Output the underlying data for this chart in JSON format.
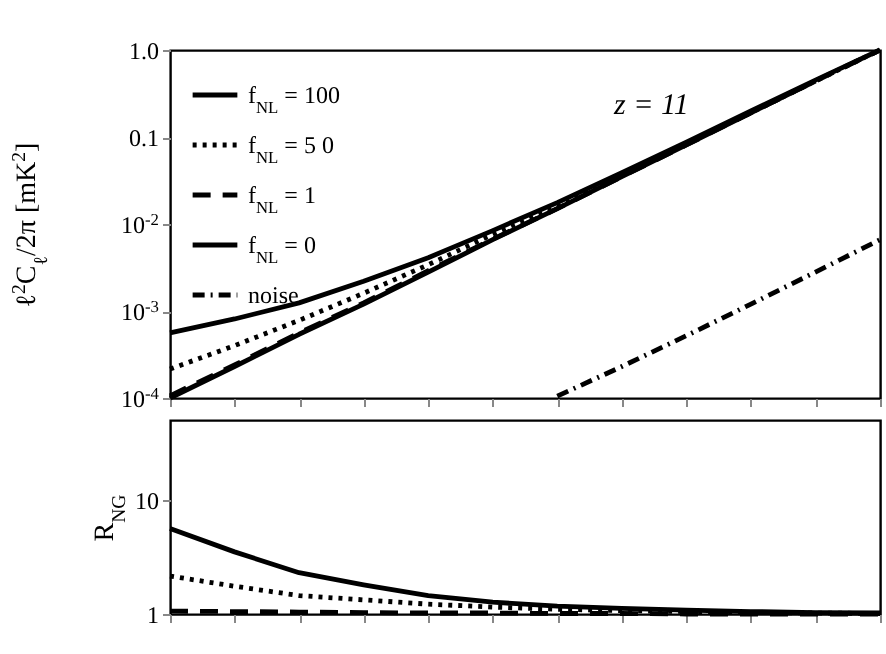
{
  "chart_data": [
    {
      "type": "line",
      "ylabel": "ℓ$^{2}$C$_{ℓ}$/2π [mK$^{2}$]",
      "categories": [
        null,
        null,
        null,
        null,
        null,
        null,
        null,
        null,
        null,
        null,
        null,
        null
      ],
      "series": [
        {
          "name": "f$_{NL}$ = 100",
          "color": "#000000",
          "line_style": "solid",
          "values": [
            0.00056,
            0.00081,
            0.00124,
            0.0022,
            0.0041,
            0.0084,
            0.0176,
            0.039,
            0.087,
            0.2,
            0.45,
            1.0
          ]
        },
        {
          "name": "f$_{NL}$ = 5 0",
          "color": "#000000",
          "line_style": "dotted",
          "values": [
            0.000215,
            0.0004,
            0.00078,
            0.0016,
            0.0034,
            0.0076,
            0.0165,
            0.037,
            0.085,
            0.19,
            0.44,
            1.0
          ]
        },
        {
          "name": "f$_{NL}$ = 1",
          "color": "#000000",
          "line_style": "dashed",
          "values": [
            0.000106,
            0.00024,
            0.00056,
            0.00124,
            0.0029,
            0.0067,
            0.015,
            0.035,
            0.081,
            0.19,
            0.44,
            1.0
          ]
        },
        {
          "name": "f$_{NL}$ = 0",
          "color": "#000000",
          "line_style": "solid",
          "values": [
            0.0001,
            0.00023,
            0.00054,
            0.0012,
            0.0028,
            0.0066,
            0.015,
            0.035,
            0.081,
            0.19,
            0.44,
            null
          ]
        },
        {
          "name": "noise",
          "color": "#000000",
          "line_style": "dashdot",
          "values": [
            null,
            null,
            null,
            null,
            null,
            null,
            0.000105,
            0.00023,
            0.00052,
            0.0012,
            0.0028,
            0.0066
          ]
        }
      ],
      "log": "y",
      "ylim": [
        0.0001,
        1
      ],
      "yticks": [
        {
          "value": 0.0001,
          "label": "10$^{-4}$"
        },
        {
          "value": 0.001,
          "label": "10$^{-3}$"
        },
        {
          "value": 0.01,
          "label": "10$^{-2}$"
        },
        {
          "value": 0.1,
          "label": "0.1"
        },
        {
          "value": 1,
          "label": "1.0"
        }
      ],
      "legend": "top left",
      "tick_labels": "y",
      "annotations": [
        "z = 11"
      ]
    },
    {
      "type": "line",
      "ylabel": "R$_{NG}$",
      "categories": [
        null,
        null,
        null,
        null,
        null,
        null,
        null,
        null,
        null,
        null,
        null,
        null
      ],
      "series": [
        {
          "color": "#000000",
          "line_style": "solid",
          "values": [
            5.6,
            3.5,
            2.3,
            1.8,
            1.45,
            1.27,
            1.17,
            1.12,
            1.08,
            1.05,
            1.03,
            1.02
          ]
        },
        {
          "color": "#000000",
          "line_style": "dotted",
          "values": [
            2.15,
            1.75,
            1.45,
            1.33,
            1.22,
            1.15,
            1.1,
            1.07,
            1.05,
            1.03,
            1.02,
            1.01
          ]
        },
        {
          "color": "#000000",
          "line_style": "dashed",
          "values": [
            1.06,
            1.05,
            1.04,
            1.03,
            1.02,
            1.02,
            1.01,
            1.01,
            1.0,
            1.0,
            1.0,
            1.0
          ]
        }
      ],
      "log": "y",
      "ylim": [
        1,
        50
      ],
      "yticks": [
        1,
        10
      ],
      "tick_labels": "y"
    }
  ]
}
